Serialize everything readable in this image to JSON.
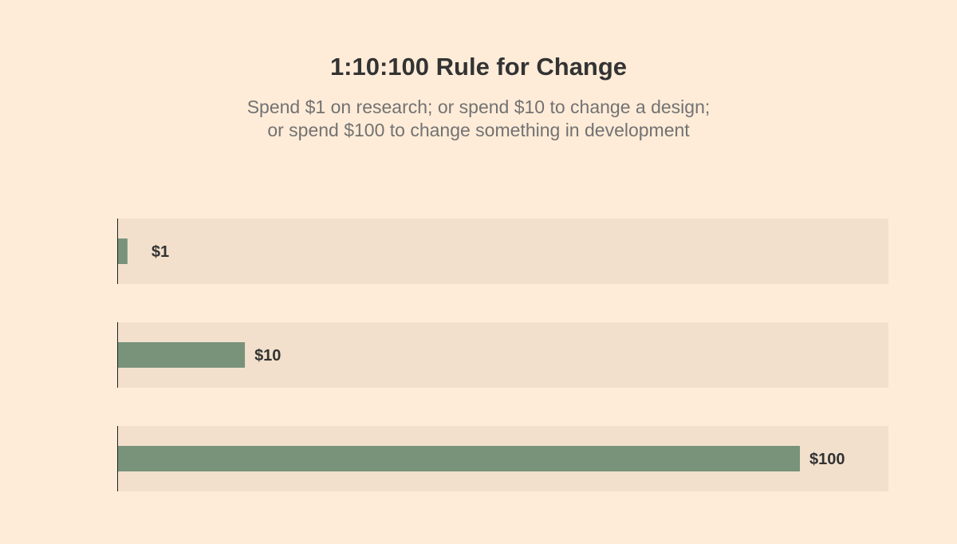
{
  "chart_data": {
    "type": "bar",
    "orientation": "horizontal",
    "title": "1:10:100 Rule for Change",
    "subtitle_lines": [
      "Spend $1 on research; or spend $10 to change a design;",
      "or spend $100 to change something in development"
    ],
    "categories": [
      "$1",
      "$10",
      "$100"
    ],
    "values": [
      1.5,
      18.7,
      100
    ],
    "xlim": [
      0,
      100
    ],
    "grid": false,
    "legend": "none"
  },
  "colors": {
    "background": "#FFECD8",
    "track": "#F2E0CC",
    "bar": "#78937A",
    "axis": "#1F1F1F",
    "title": "#333333",
    "subtitle": "#727272",
    "label": "#333333"
  }
}
